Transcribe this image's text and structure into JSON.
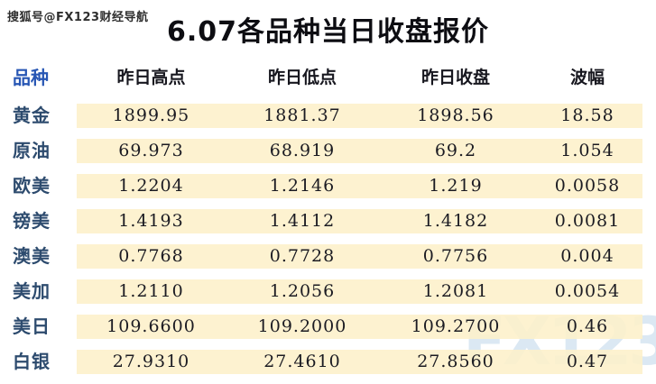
{
  "page": {
    "source_watermark": "搜狐号@FX123财经导航",
    "title": "6.07各品种当日收盘报价",
    "brand_watermark": "FX123"
  },
  "colors": {
    "row_band_bg": "#fdf0c9",
    "label_text": "#2d4b6e",
    "header_first_text": "#2756b4",
    "header_text": "#17171f",
    "number_text": "#1b1b22",
    "brand_watermark_text": "#dbe8f3",
    "background": "#ffffff"
  },
  "table": {
    "headers": [
      "品种",
      "昨日高点",
      "昨日低点",
      "昨日收盘",
      "波幅"
    ],
    "rows": [
      {
        "name": "黄金",
        "high": "1899.95",
        "low": "1881.37",
        "close": "1898.56",
        "range": "18.58"
      },
      {
        "name": "原油",
        "high": "69.973",
        "low": "68.919",
        "close": "69.2",
        "range": "1.054"
      },
      {
        "name": "欧美",
        "high": "1.2204",
        "low": "1.2146",
        "close": "1.219",
        "range": "0.0058"
      },
      {
        "name": "镑美",
        "high": "1.4193",
        "low": "1.4112",
        "close": "1.4182",
        "range": "0.0081"
      },
      {
        "name": "澳美",
        "high": "0.7768",
        "low": "0.7728",
        "close": "0.7756",
        "range": "0.004"
      },
      {
        "name": "美加",
        "high": "1.2110",
        "low": "1.2056",
        "close": "1.2081",
        "range": "0.0054"
      },
      {
        "name": "美日",
        "high": "109.6600",
        "low": "109.2000",
        "close": "109.2700",
        "range": "0.46"
      },
      {
        "name": "白银",
        "high": "27.9310",
        "low": "27.4610",
        "close": "27.8560",
        "range": "0.47"
      }
    ]
  },
  "chart_data": {
    "type": "table",
    "title": "6.07各品种当日收盘报价",
    "columns": [
      "品种",
      "昨日高点",
      "昨日低点",
      "昨日收盘",
      "波幅"
    ],
    "rows": [
      [
        "黄金",
        1899.95,
        1881.37,
        1898.56,
        18.58
      ],
      [
        "原油",
        69.973,
        68.919,
        69.2,
        1.054
      ],
      [
        "欧美",
        1.2204,
        1.2146,
        1.219,
        0.0058
      ],
      [
        "镑美",
        1.4193,
        1.4112,
        1.4182,
        0.0081
      ],
      [
        "澳美",
        0.7768,
        0.7728,
        0.7756,
        0.004
      ],
      [
        "美加",
        1.211,
        1.2056,
        1.2081,
        0.0054
      ],
      [
        "美日",
        109.66,
        109.2,
        109.27,
        0.46
      ],
      [
        "白银",
        27.931,
        27.461,
        27.856,
        0.47
      ]
    ]
  }
}
